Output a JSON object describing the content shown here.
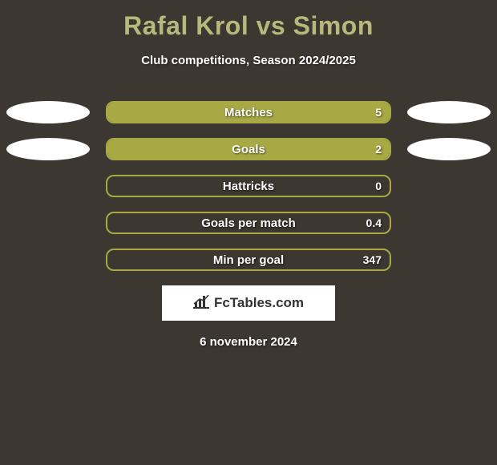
{
  "title": "Rafal Krol vs Simon",
  "subtitle": "Club competitions, Season 2024/2025",
  "date": "6 november 2024",
  "logo_text": "FcTables.com",
  "colors": {
    "background": "#3d3731",
    "title_color": "#b8b87c",
    "bar_color": "#a8a845",
    "text_color": "#ffffff",
    "oval_color": "#ffffff"
  },
  "stats": [
    {
      "label": "Matches",
      "left_value": "",
      "right_value": "5",
      "left_fill_pct": 0,
      "right_fill_pct": 100,
      "show_left_oval": true,
      "show_right_oval": true
    },
    {
      "label": "Goals",
      "left_value": "",
      "right_value": "2",
      "left_fill_pct": 0,
      "right_fill_pct": 100,
      "show_left_oval": true,
      "show_right_oval": true
    },
    {
      "label": "Hattricks",
      "left_value": "",
      "right_value": "0",
      "left_fill_pct": 0,
      "right_fill_pct": 0,
      "show_left_oval": false,
      "show_right_oval": false
    },
    {
      "label": "Goals per match",
      "left_value": "",
      "right_value": "0.4",
      "left_fill_pct": 0,
      "right_fill_pct": 0,
      "show_left_oval": false,
      "show_right_oval": false
    },
    {
      "label": "Min per goal",
      "left_value": "",
      "right_value": "347",
      "left_fill_pct": 0,
      "right_fill_pct": 0,
      "show_left_oval": false,
      "show_right_oval": false
    }
  ]
}
